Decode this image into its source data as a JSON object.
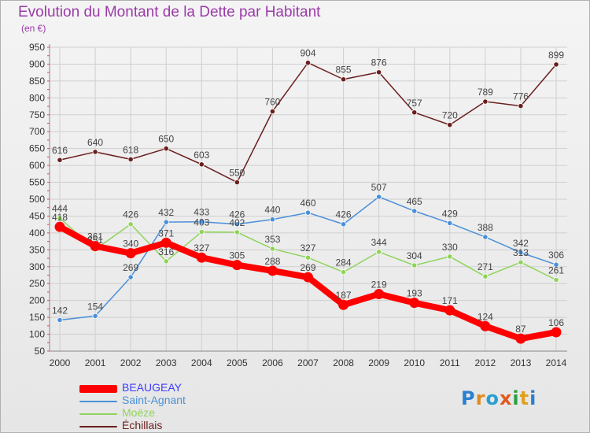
{
  "title": "Evolution du Montant de la Dette par Habitant",
  "unit": "(en €)",
  "logo": "Proxiti",
  "colors": {
    "title": "#9b3aa8",
    "grid": "#cfcfcf",
    "axis_text": "#333333",
    "value_text": "#444444"
  },
  "chart_data": {
    "type": "line",
    "title": "Evolution du Montant de la Dette par Habitant",
    "ylabel": "(en €)",
    "xlabel": "",
    "x": [
      "2000",
      "2001",
      "2002",
      "2003",
      "2004",
      "2005",
      "2006",
      "2007",
      "2008",
      "2009",
      "2010",
      "2011",
      "2012",
      "2013",
      "2014"
    ],
    "y_ticks": [
      50,
      100,
      150,
      200,
      250,
      300,
      350,
      400,
      450,
      500,
      550,
      600,
      650,
      700,
      750,
      800,
      850,
      900,
      950
    ],
    "ylim": [
      50,
      950
    ],
    "grid": true,
    "legend_position": "bottom-left",
    "series": [
      {
        "name": "BEAUGEAY",
        "color": "#ff0000",
        "legend_color": "#3d3dff",
        "width": 8,
        "values": [
          418,
          361,
          340,
          371,
          327,
          305,
          288,
          269,
          187,
          219,
          193,
          171,
          124,
          87,
          106
        ]
      },
      {
        "name": "Saint-Agnant",
        "color": "#4a90d9",
        "legend_color": "#4a90d9",
        "width": 1.5,
        "values": [
          142,
          154,
          269,
          432,
          433,
          426,
          440,
          460,
          426,
          507,
          465,
          429,
          388,
          342,
          306
        ]
      },
      {
        "name": "Moëze",
        "color": "#8fd45a",
        "legend_color": "#8fd45a",
        "width": 1.5,
        "values": [
          444,
          351,
          426,
          316,
          403,
          402,
          353,
          327,
          284,
          344,
          304,
          330,
          271,
          313,
          261
        ]
      },
      {
        "name": "Échillais",
        "color": "#6b1e1e",
        "legend_color": "#6b1e1e",
        "width": 1.5,
        "values": [
          616,
          640,
          618,
          650,
          603,
          550,
          760,
          904,
          855,
          876,
          757,
          720,
          789,
          776,
          899
        ]
      }
    ]
  }
}
